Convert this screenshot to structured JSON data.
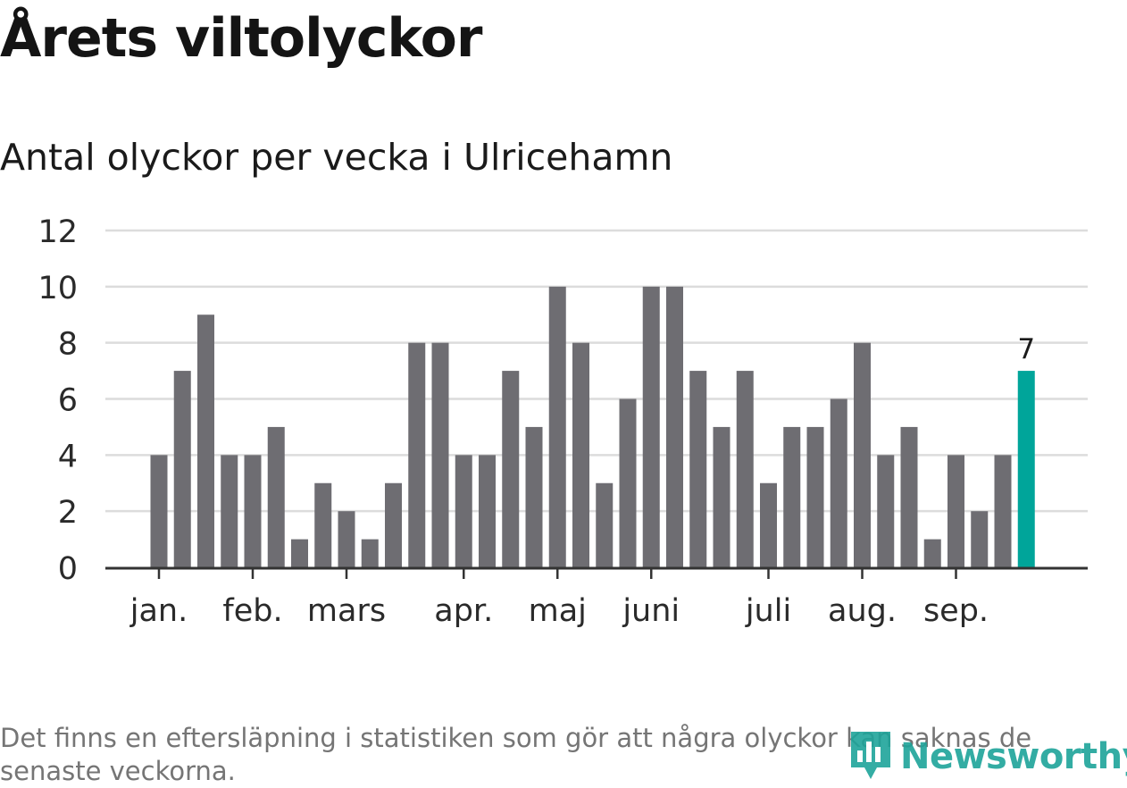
{
  "title": "Årets viltolyckor",
  "subtitle": "Antal olyckor per vecka i Ulricehamn",
  "footnote": "Det finns en eftersläpning i statistiken som gör att några olyckor kan saknas de senaste veckorna.",
  "logo": {
    "name": "Newsworthy",
    "icon": "bar-chart-pin-icon"
  },
  "colors": {
    "bar": "#6e6d72",
    "highlight": "#00a59a",
    "grid": "#dcdcdc",
    "axis": "#333333",
    "logo": "#1ea49a"
  },
  "chart_data": {
    "type": "bar",
    "unit": "week",
    "values": [
      4,
      7,
      9,
      4,
      4,
      5,
      1,
      3,
      2,
      1,
      3,
      8,
      8,
      4,
      4,
      7,
      5,
      10,
      8,
      3,
      6,
      10,
      10,
      7,
      5,
      7,
      3,
      5,
      5,
      6,
      8,
      4,
      5,
      1,
      4,
      2,
      4,
      7
    ],
    "highlight_index": 37,
    "highlight_label": "7",
    "month_labels": [
      {
        "label": "jan.",
        "week": 1
      },
      {
        "label": "feb.",
        "week": 5
      },
      {
        "label": "mars",
        "week": 9
      },
      {
        "label": "apr.",
        "week": 14
      },
      {
        "label": "maj",
        "week": 18
      },
      {
        "label": "juni",
        "week": 22
      },
      {
        "label": "juli",
        "week": 27
      },
      {
        "label": "aug.",
        "week": 31
      },
      {
        "label": "sep.",
        "week": 35
      }
    ],
    "yticks": [
      0,
      2,
      4,
      6,
      8,
      10,
      12
    ],
    "ylim": [
      0,
      12
    ],
    "grid": true,
    "legend": "none"
  }
}
